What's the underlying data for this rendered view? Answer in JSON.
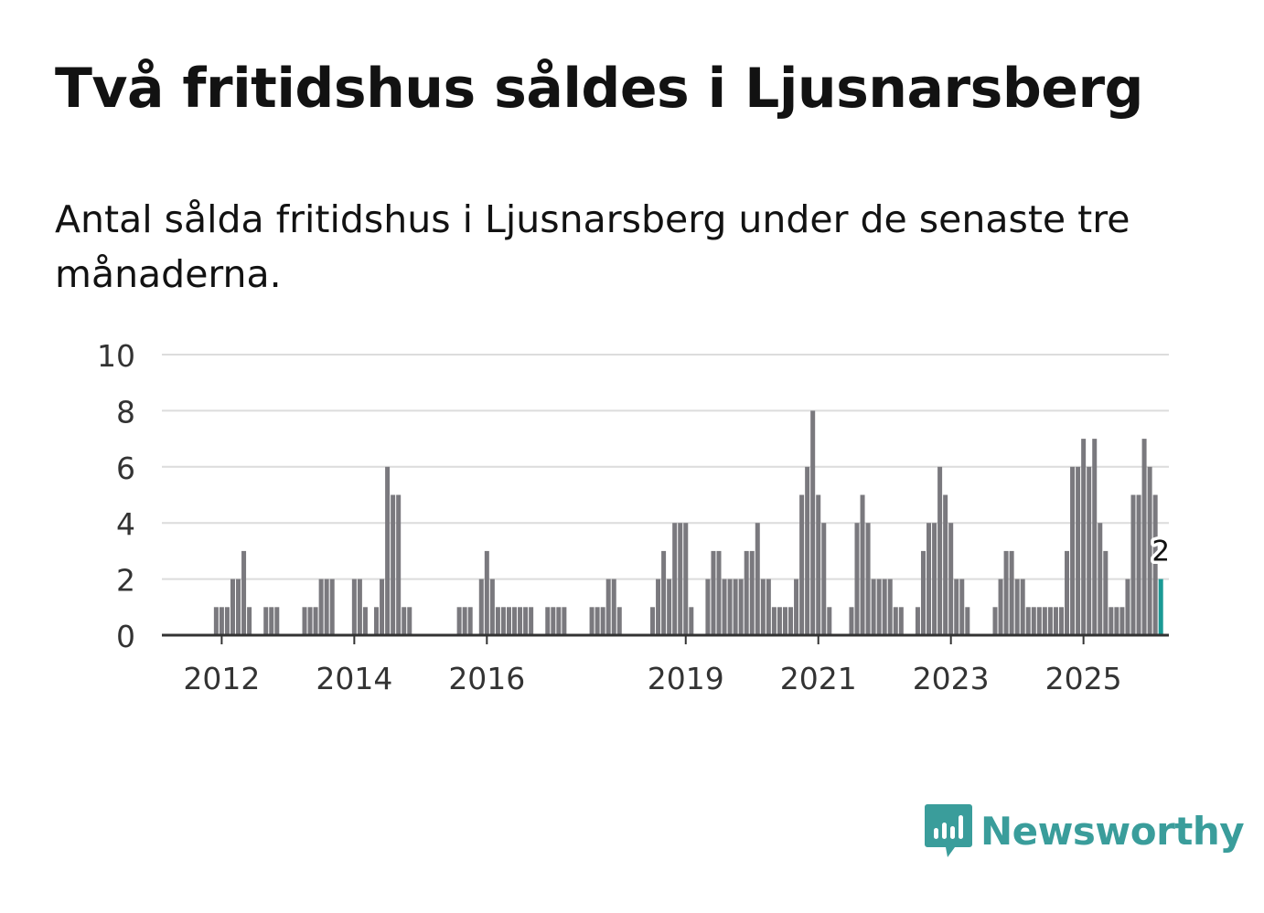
{
  "title": "Två fritidshus såldes i Ljusnarsberg",
  "subtitle": "Antal sålda fritidshus i Ljusnarsberg under de senaste tre månaderna.",
  "logo": {
    "name": "Newsworthy",
    "icon": "newsworthy-logo-icon"
  },
  "colors": {
    "bar": "#7a797e",
    "highlight": "#1a9a95",
    "grid": "#dcdcdc",
    "axis": "#333333",
    "logo": "#3a9d9b"
  },
  "chart_data": {
    "type": "bar",
    "title": "Två fritidshus såldes i Ljusnarsberg",
    "xlabel": "",
    "ylabel": "",
    "ylim": [
      0,
      10
    ],
    "y_ticks": [
      0,
      2,
      4,
      6,
      8,
      10
    ],
    "x_ticks": [
      "2012",
      "2014",
      "2016",
      "2019",
      "2021",
      "2023",
      "2025"
    ],
    "x_start": "2011-03",
    "grid": true,
    "series": [
      {
        "name": "Antal sålda fritidshus",
        "values": [
          0,
          0,
          0,
          0,
          0,
          0,
          0,
          0,
          0,
          1,
          1,
          1,
          2,
          2,
          3,
          1,
          0,
          0,
          1,
          1,
          1,
          0,
          0,
          0,
          0,
          1,
          1,
          1,
          2,
          2,
          2,
          0,
          0,
          0,
          2,
          2,
          1,
          0,
          1,
          2,
          6,
          5,
          5,
          1,
          1,
          0,
          0,
          0,
          0,
          0,
          0,
          0,
          0,
          1,
          1,
          1,
          0,
          2,
          3,
          2,
          1,
          1,
          1,
          1,
          1,
          1,
          1,
          0,
          0,
          1,
          1,
          1,
          1,
          0,
          0,
          0,
          0,
          1,
          1,
          1,
          2,
          2,
          1,
          0,
          0,
          0,
          0,
          0,
          1,
          2,
          3,
          2,
          4,
          4,
          4,
          1,
          0,
          0,
          2,
          3,
          3,
          2,
          2,
          2,
          2,
          3,
          3,
          4,
          2,
          2,
          1,
          1,
          1,
          1,
          2,
          5,
          6,
          8,
          5,
          4,
          1,
          0,
          0,
          0,
          1,
          4,
          5,
          4,
          2,
          2,
          2,
          2,
          1,
          1,
          0,
          0,
          1,
          3,
          4,
          4,
          6,
          5,
          4,
          2,
          2,
          1,
          0,
          0,
          0,
          0,
          1,
          2,
          3,
          3,
          2,
          2,
          1,
          1,
          1,
          1,
          1,
          1,
          1,
          3,
          6,
          6,
          7,
          6,
          7,
          4,
          3,
          1,
          1,
          1,
          2,
          5,
          5,
          7,
          6,
          5,
          2
        ]
      }
    ],
    "highlight_last": true,
    "annotation": {
      "label": "2",
      "index": "last"
    }
  }
}
